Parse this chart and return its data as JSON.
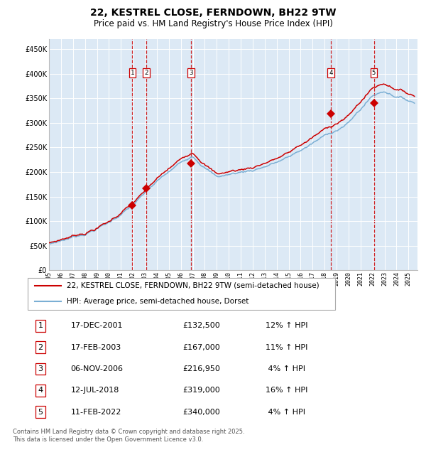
{
  "title": "22, KESTREL CLOSE, FERNDOWN, BH22 9TW",
  "subtitle": "Price paid vs. HM Land Registry's House Price Index (HPI)",
  "title_fontsize": 10,
  "subtitle_fontsize": 8.5,
  "bg_color": "#dce9f5",
  "grid_color": "#ffffff",
  "ylim": [
    0,
    470000
  ],
  "xlim_start": 1995,
  "xlim_end": 2025.75,
  "hpi_line_color": "#7bafd4",
  "price_line_color": "#cc0000",
  "sale_marker_color": "#cc0000",
  "vline_color": "#cc0000",
  "sale_points": [
    {
      "date_dec": 2001.96,
      "price": 132500,
      "label": "1"
    },
    {
      "date_dec": 2003.12,
      "price": 167000,
      "label": "2"
    },
    {
      "date_dec": 2006.84,
      "price": 216950,
      "label": "3"
    },
    {
      "date_dec": 2018.53,
      "price": 319000,
      "label": "4"
    },
    {
      "date_dec": 2022.11,
      "price": 340000,
      "label": "5"
    }
  ],
  "table_rows": [
    {
      "num": "1",
      "date": "17-DEC-2001",
      "price": "£132,500",
      "hpi": "12% ↑ HPI"
    },
    {
      "num": "2",
      "date": "17-FEB-2003",
      "price": "£167,000",
      "hpi": "11% ↑ HPI"
    },
    {
      "num": "3",
      "date": "06-NOV-2006",
      "price": "£216,950",
      "hpi": " 4% ↑ HPI"
    },
    {
      "num": "4",
      "date": "12-JUL-2018",
      "price": "£319,000",
      "hpi": "16% ↑ HPI"
    },
    {
      "num": "5",
      "date": "11-FEB-2022",
      "price": "£340,000",
      "hpi": " 4% ↑ HPI"
    }
  ],
  "legend_line1": "22, KESTREL CLOSE, FERNDOWN, BH22 9TW (semi-detached house)",
  "legend_line2": "HPI: Average price, semi-detached house, Dorset",
  "footer": "Contains HM Land Registry data © Crown copyright and database right 2025.\nThis data is licensed under the Open Government Licence v3.0."
}
